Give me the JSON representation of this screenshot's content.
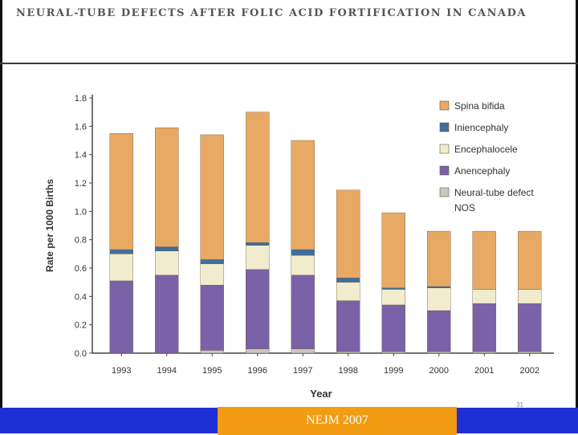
{
  "slide": {
    "title": "NEURAL-TUBE DEFECTS AFTER FOLIC ACID FORTIFICATION IN CANADA",
    "source": "NEJM 2007",
    "page_number": "31"
  },
  "colors": {
    "spina_bifida": "#e8a965",
    "iniencephaly": "#3f6fa0",
    "encephalocele": "#f1eccd",
    "anencephaly": "#7a62a8",
    "ntd_nos": "#c8c8c0",
    "bottom_bar": "#1f2fd6",
    "source_box": "#f29b13"
  },
  "chart_data": {
    "type": "bar",
    "stacked": true,
    "title": "",
    "xlabel": "Year",
    "ylabel": "Rate per 1000 Births",
    "ylim": [
      0,
      1.8
    ],
    "yticks": [
      "0.0",
      "0.2",
      "0.4",
      "0.6",
      "0.8",
      "1.0",
      "1.2",
      "1.4",
      "1.6",
      "1.8"
    ],
    "categories": [
      "1993",
      "1994",
      "1995",
      "1996",
      "1997",
      "1998",
      "1999",
      "2000",
      "2001",
      "2002"
    ],
    "legend_position": "top-right",
    "series": [
      {
        "name": "Neural-tube defect NOS",
        "color_key": "ntd_nos",
        "values": [
          0.0,
          0.0,
          0.02,
          0.03,
          0.03,
          0.01,
          0.01,
          0.01,
          0.01,
          0.01
        ]
      },
      {
        "name": "Anencephaly",
        "color_key": "anencephaly",
        "values": [
          0.51,
          0.55,
          0.46,
          0.56,
          0.52,
          0.36,
          0.33,
          0.29,
          0.34,
          0.34
        ]
      },
      {
        "name": "Encephalocele",
        "color_key": "encephalocele",
        "values": [
          0.19,
          0.17,
          0.15,
          0.17,
          0.14,
          0.13,
          0.11,
          0.16,
          0.1,
          0.1
        ]
      },
      {
        "name": "Iniencephaly",
        "color_key": "iniencephaly",
        "values": [
          0.03,
          0.03,
          0.03,
          0.02,
          0.04,
          0.03,
          0.01,
          0.01,
          0.0,
          0.0
        ]
      },
      {
        "name": "Spina bifida",
        "color_key": "spina_bifida",
        "values": [
          0.82,
          0.84,
          0.88,
          0.92,
          0.77,
          0.62,
          0.53,
          0.39,
          0.41,
          0.41
        ]
      }
    ],
    "legend": [
      {
        "label": "Spina bifida",
        "color_key": "spina_bifida"
      },
      {
        "label": "Iniencephaly",
        "color_key": "iniencephaly"
      },
      {
        "label": "Encephalocele",
        "color_key": "encephalocele"
      },
      {
        "label": "Anencephaly",
        "color_key": "anencephaly"
      },
      {
        "label": "Neural-tube defect NOS",
        "color_key": "ntd_nos"
      }
    ]
  }
}
